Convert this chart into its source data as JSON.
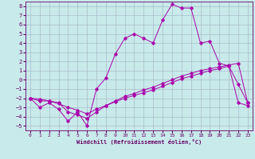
{
  "xlabel": "Windchill (Refroidissement éolien,°C)",
  "bg_color": "#c8eaea",
  "grid_color": "#aabbcc",
  "line_color": "#aa00aa",
  "x_data": [
    0,
    1,
    2,
    3,
    4,
    5,
    6,
    7,
    8,
    9,
    10,
    11,
    12,
    13,
    14,
    15,
    16,
    17,
    18,
    19,
    20,
    21,
    22,
    23
  ],
  "series1": [
    -2.0,
    -3.0,
    -2.5,
    -3.2,
    -4.5,
    -3.5,
    -5.0,
    -1.0,
    0.2,
    2.8,
    4.5,
    5.0,
    4.5,
    4.0,
    6.5,
    8.2,
    7.8,
    7.8,
    4.0,
    4.2,
    1.8,
    1.5,
    -0.5,
    -2.5
  ],
  "series2": [
    -2.0,
    -2.3,
    -2.3,
    -2.5,
    -3.5,
    -3.8,
    -4.2,
    -3.5,
    -2.8,
    -2.3,
    -1.8,
    -1.5,
    -1.1,
    -0.8,
    -0.4,
    0.0,
    0.4,
    0.7,
    1.0,
    1.2,
    1.4,
    1.6,
    1.8,
    -2.5
  ],
  "series3": [
    -2.0,
    -2.1,
    -2.3,
    -2.6,
    -3.0,
    -3.3,
    -3.7,
    -3.2,
    -2.8,
    -2.4,
    -2.0,
    -1.7,
    -1.4,
    -1.1,
    -0.7,
    -0.3,
    0.1,
    0.4,
    0.7,
    1.0,
    1.2,
    1.5,
    -2.5,
    -2.8
  ],
  "xlim": [
    -0.5,
    23.5
  ],
  "ylim": [
    -5.5,
    8.5
  ],
  "xticks": [
    0,
    1,
    2,
    3,
    4,
    5,
    6,
    7,
    8,
    9,
    10,
    11,
    12,
    13,
    14,
    15,
    16,
    17,
    18,
    19,
    20,
    21,
    22,
    23
  ],
  "yticks": [
    -5,
    -4,
    -3,
    -2,
    -1,
    0,
    1,
    2,
    3,
    4,
    5,
    6,
    7,
    8
  ]
}
